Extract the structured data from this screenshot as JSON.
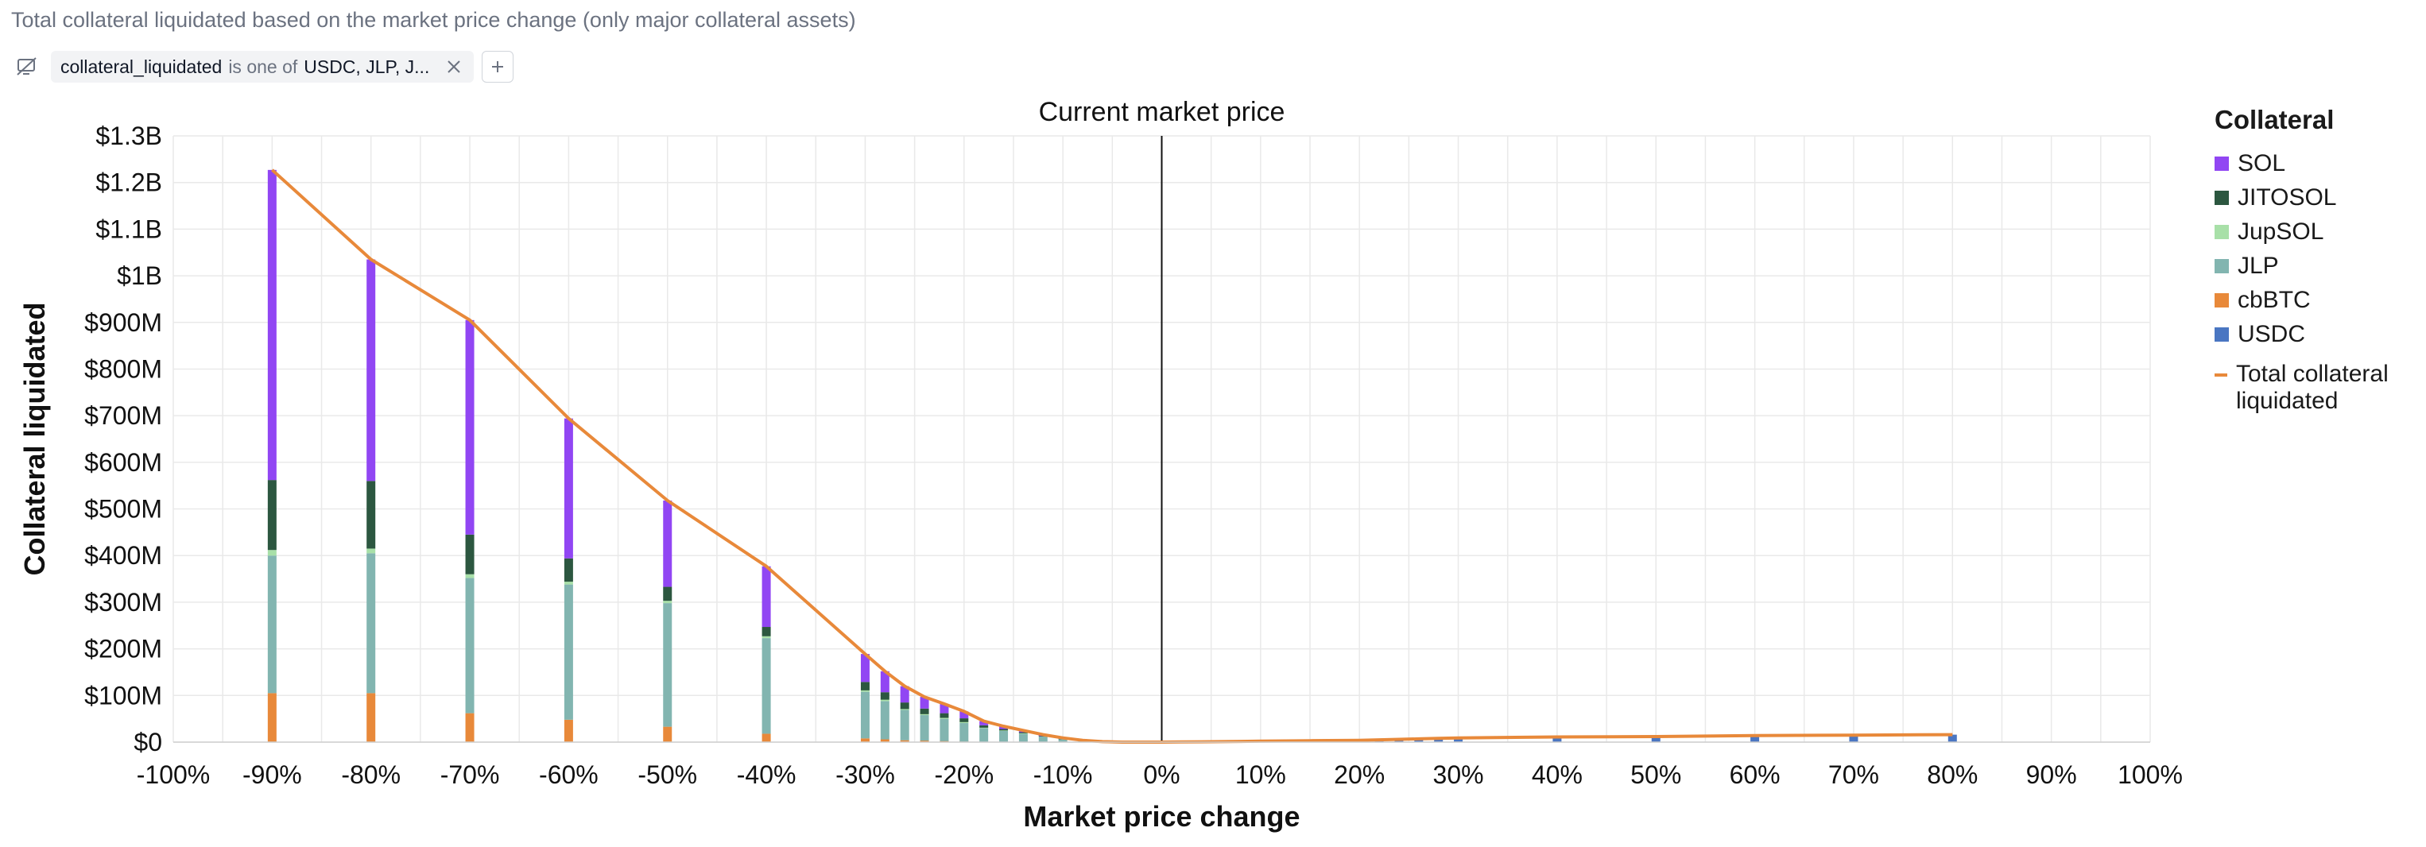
{
  "subtitle": "Total collateral liquidated based on the market price change (only major collateral assets)",
  "filter": {
    "field": "collateral_liquidated",
    "operator": "is one of",
    "value": "USDC, JLP, J..."
  },
  "colors": {
    "SOL": "#9146f3",
    "JITOSOL": "#2c5740",
    "JupSOL": "#a8e0a8",
    "JLP": "#82b5b0",
    "cbBTC": "#e8893a",
    "USDC": "#4a76c2",
    "total": "#e8893a",
    "axis": "#111111",
    "grid": "#e9e9e9"
  },
  "chart_data": {
    "type": "bar",
    "stacked": true,
    "title": "Current market price",
    "xlabel": "Market price change",
    "ylabel": "Collateral liquidated",
    "x_tick_labels": [
      "-100%",
      "-90%",
      "-80%",
      "-70%",
      "-60%",
      "-50%",
      "-40%",
      "-30%",
      "-20%",
      "-10%",
      "0%",
      "10%",
      "20%",
      "30%",
      "40%",
      "50%",
      "60%",
      "70%",
      "80%",
      "90%",
      "100%"
    ],
    "y_tick_labels": [
      "$0",
      "$100M",
      "$200M",
      "$300M",
      "$400M",
      "$500M",
      "$600M",
      "$700M",
      "$800M",
      "$900M",
      "$1B",
      "$1.1B",
      "$1.2B",
      "$1.3B"
    ],
    "xlim": [
      -100,
      100
    ],
    "ylim": [
      0,
      1300
    ],
    "y_units": "$M",
    "grid": true,
    "legend_title": "Collateral",
    "legend_position": "right",
    "reference_line": {
      "x": 0,
      "label": "Current market price"
    },
    "x": [
      -90,
      -80,
      -70,
      -60,
      -50,
      -40,
      -30,
      -28,
      -26,
      -24,
      -22,
      -20,
      -18,
      -16,
      -14,
      -12,
      -10,
      -8,
      -6,
      -4,
      -2,
      2,
      4,
      6,
      8,
      10,
      15,
      20,
      22,
      24,
      26,
      28,
      30,
      40,
      50,
      60,
      70,
      80
    ],
    "series": [
      {
        "name": "SOL",
        "values": [
          665,
          475,
          460,
          300,
          185,
          130,
          60,
          45,
          35,
          25,
          20,
          15,
          9,
          6,
          4,
          3,
          2,
          1,
          0,
          0,
          0,
          0,
          0,
          0,
          0,
          0,
          0,
          0,
          0,
          0,
          0,
          0,
          0,
          0,
          0,
          0,
          0,
          0
        ]
      },
      {
        "name": "JITOSOL",
        "values": [
          150,
          145,
          85,
          50,
          30,
          20,
          18,
          16,
          14,
          12,
          10,
          8,
          5,
          3,
          2,
          1,
          1,
          0,
          0,
          0,
          0,
          0,
          0,
          0,
          0,
          0,
          0,
          0,
          0,
          0,
          0,
          0,
          0,
          0,
          0,
          0,
          0,
          0
        ]
      },
      {
        "name": "JupSOL",
        "values": [
          12,
          10,
          8,
          6,
          5,
          4,
          3,
          3,
          2,
          2,
          2,
          2,
          1,
          1,
          1,
          0,
          0,
          0,
          0,
          0,
          0,
          0,
          0,
          0,
          0,
          0,
          0,
          0,
          0,
          0,
          0,
          0,
          0,
          0,
          0,
          0,
          0,
          0
        ]
      },
      {
        "name": "JLP",
        "values": [
          295,
          300,
          290,
          290,
          265,
          205,
          100,
          82,
          65,
          55,
          48,
          40,
          30,
          24,
          18,
          12,
          6,
          3,
          1,
          0,
          0,
          0,
          0,
          0,
          0,
          0,
          0,
          0,
          0,
          0,
          0,
          0,
          0,
          0,
          0,
          0,
          0,
          0
        ]
      },
      {
        "name": "cbBTC",
        "values": [
          105,
          105,
          62,
          48,
          33,
          18,
          8,
          6,
          4,
          3,
          2,
          1,
          0,
          0,
          0,
          0,
          0,
          0,
          0,
          0,
          0,
          0,
          0,
          0,
          0,
          0,
          0,
          0,
          0,
          0,
          0,
          0,
          0,
          0,
          0,
          0,
          0,
          0
        ]
      },
      {
        "name": "USDC",
        "values": [
          0,
          0,
          0,
          0,
          0,
          0,
          0,
          0,
          0,
          0,
          0,
          0,
          0,
          0,
          0,
          0,
          0,
          0,
          0,
          0,
          0,
          0.3,
          0.6,
          1,
          1.5,
          2,
          3,
          4,
          5,
          6,
          7,
          8,
          9,
          11,
          12,
          14,
          15,
          16
        ]
      }
    ],
    "total_series": {
      "name": "Total collateral liquidated",
      "type": "line",
      "x": [
        -90,
        -80,
        -70,
        -60,
        -50,
        -40,
        -30,
        -28,
        -26,
        -24,
        -22,
        -20,
        -18,
        -16,
        -14,
        -12,
        -10,
        -8,
        -6,
        -4,
        -2,
        0,
        2,
        4,
        6,
        8,
        10,
        15,
        20,
        22,
        24,
        26,
        28,
        30,
        40,
        50,
        60,
        70,
        80
      ],
      "values": [
        1227,
        1035,
        905,
        694,
        518,
        377,
        189,
        152,
        120,
        97,
        82,
        66,
        45,
        34,
        25,
        16,
        9,
        4,
        1,
        0,
        0,
        0,
        0.3,
        0.6,
        1,
        1.5,
        2,
        3,
        4,
        5,
        6,
        7,
        8,
        9,
        11,
        12,
        14,
        15,
        16
      ]
    }
  }
}
